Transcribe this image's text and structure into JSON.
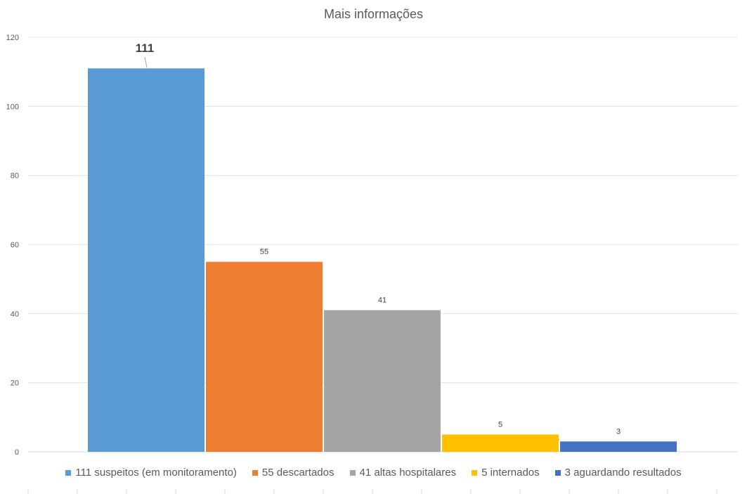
{
  "chart_data": {
    "type": "bar",
    "title": "Mais informações",
    "categories": [
      "111 suspeitos (em monitoramento)",
      "55 descartados",
      "41 altas hospitalares",
      "5 internados",
      "3 aguardando resultados"
    ],
    "values": [
      111,
      55,
      41,
      5,
      3
    ],
    "data_labels": [
      "111",
      "55",
      "41",
      "5",
      "3"
    ],
    "colors": [
      "#5b9bd5",
      "#ed7d31",
      "#a5a5a5",
      "#ffc000",
      "#4472c4"
    ],
    "ylim": [
      0,
      120
    ],
    "yticks": [
      0,
      20,
      40,
      60,
      80,
      100,
      120
    ],
    "xlabel": "",
    "ylabel": "",
    "grid": true,
    "legend_position": "bottom"
  }
}
